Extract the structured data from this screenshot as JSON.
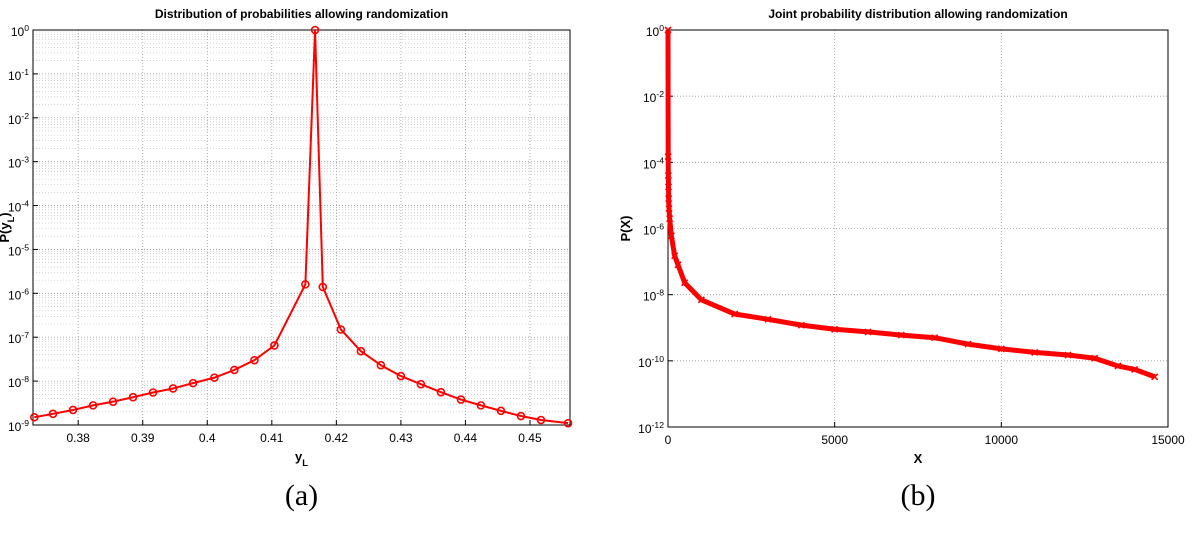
{
  "chart_data": [
    {
      "type": "line",
      "title": "Distribution of probabilities allowing randomization",
      "x_label": "y_L",
      "y_label": "P(y_L)",
      "caption": "(a)",
      "log_y": true,
      "grid": true,
      "minor_grid": true,
      "marker": "o",
      "color": "#ff0000",
      "xlim": [
        0.373,
        0.4562
      ],
      "xticks": [
        0.38,
        0.39,
        0.4,
        0.41,
        0.42,
        0.43,
        0.44,
        0.45
      ],
      "ylim": [
        1e-09,
        1
      ],
      "yticks": [
        {
          "value": 1e-09,
          "label": "10^-9"
        },
        {
          "value": 1e-08,
          "label": "10^-8"
        },
        {
          "value": 1e-07,
          "label": "10^-7"
        },
        {
          "value": 1e-06,
          "label": "10^-6"
        },
        {
          "value": 1e-05,
          "label": "10^-5"
        },
        {
          "value": 0.0001,
          "label": "10^-4"
        },
        {
          "value": 0.001,
          "label": "10^-3"
        },
        {
          "value": 0.01,
          "label": "10^-2"
        },
        {
          "value": 0.1,
          "label": "10^-1"
        },
        {
          "value": 1,
          "label": "10^0"
        }
      ],
      "x": [
        0.3732,
        0.3761,
        0.3792,
        0.3823,
        0.3854,
        0.3885,
        0.3916,
        0.3947,
        0.3978,
        0.4011,
        0.4042,
        0.4073,
        0.4104,
        0.4152,
        0.4167,
        0.4179,
        0.4207,
        0.4238,
        0.4269,
        0.43,
        0.4331,
        0.4362,
        0.4393,
        0.4424,
        0.4455,
        0.4486,
        0.4517,
        0.4559
      ],
      "values": [
        1.5e-09,
        1.8e-09,
        2.2e-09,
        2.8e-09,
        3.4e-09,
        4.3e-09,
        5.5e-09,
        6.8e-09,
        9e-09,
        1.2e-08,
        1.8e-08,
        3e-08,
        6.5e-08,
        1.6e-06,
        1,
        1.4e-06,
        1.5e-07,
        4.8e-08,
        2.3e-08,
        1.3e-08,
        8.5e-09,
        5.6e-09,
        3.8e-09,
        2.8e-09,
        2.1e-09,
        1.6e-09,
        1.3e-09,
        1.1e-09
      ]
    },
    {
      "type": "line",
      "title": "Joint probability distribution allowing randomization",
      "x_label": "X",
      "y_label": "P(X)",
      "caption": "(b)",
      "log_y": true,
      "grid": true,
      "minor_grid": false,
      "marker": "x",
      "color": "#ff0000",
      "xlim": [
        0,
        15000
      ],
      "xticks": [
        0,
        5000,
        10000,
        15000
      ],
      "ylim": [
        1e-12,
        1
      ],
      "yticks": [
        {
          "value": 1e-12,
          "label": "10^-12"
        },
        {
          "value": 1e-10,
          "label": "10^-10"
        },
        {
          "value": 1e-08,
          "label": "10^-8"
        },
        {
          "value": 1e-06,
          "label": "10^-6"
        },
        {
          "value": 0.0001,
          "label": "10^-4"
        },
        {
          "value": 0.01,
          "label": "10^-2"
        },
        {
          "value": 1,
          "label": "10^0"
        }
      ],
      "x": [
        0,
        5,
        10,
        15,
        20,
        30,
        50,
        100,
        200,
        300,
        500,
        1000,
        2000,
        3000,
        4000,
        5000,
        6000,
        7000,
        8000,
        9000,
        10000,
        11000,
        12000,
        12800,
        13500,
        14000,
        14600
      ],
      "values": [
        1,
        0.00015,
        4e-05,
        1.8e-05,
        8e-06,
        4e-06,
        2e-06,
        6e-07,
        1.5e-07,
        8e-08,
        2.3e-08,
        7e-09,
        2.6e-09,
        1.8e-09,
        1.2e-09,
        9e-10,
        7.5e-10,
        6e-10,
        5e-10,
        3.2e-10,
        2.3e-10,
        1.8e-10,
        1.5e-10,
        1.2e-10,
        7e-11,
        5.5e-11,
        3.3e-11
      ]
    }
  ]
}
